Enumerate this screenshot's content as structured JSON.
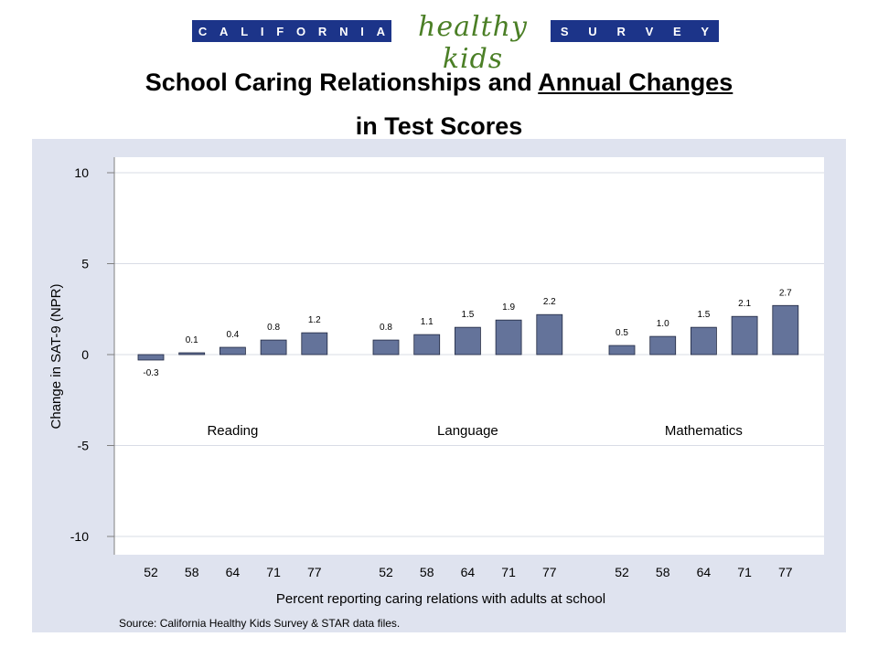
{
  "logo": {
    "left_letters": [
      "C",
      "A",
      "L",
      "I",
      "F",
      "O",
      "R",
      "N",
      "I",
      "A"
    ],
    "script_text": "healthy kids",
    "right_letters": [
      "S",
      "U",
      "R",
      "V",
      "E",
      "Y"
    ],
    "band_color": "#1c3489",
    "script_color": "#4b7f26"
  },
  "title": {
    "part1": "School Caring Relationships and ",
    "part2_underlined": "Annual Changes",
    "line2": "in Test Scores"
  },
  "chart_data": {
    "type": "bar",
    "ylabel": "Change in SAT-9 (NPR)",
    "xlabel": "Percent reporting caring relations with adults at school",
    "ylim": [
      -10,
      10
    ],
    "yticks": [
      10,
      5,
      0,
      -5,
      -10
    ],
    "grid": true,
    "bar_color": "#64739a",
    "groups": [
      {
        "name": "Reading",
        "categories": [
          "52",
          "58",
          "64",
          "71",
          "77"
        ],
        "values": [
          -0.3,
          0.1,
          0.4,
          0.8,
          1.2
        ],
        "labels": [
          "-0.3",
          "0.1",
          "0.4",
          "0.8",
          "1.2"
        ]
      },
      {
        "name": "Language",
        "categories": [
          "52",
          "58",
          "64",
          "71",
          "77"
        ],
        "values": [
          0.8,
          1.1,
          1.5,
          1.9,
          2.2
        ],
        "labels": [
          "0.8",
          "1.1",
          "1.5",
          "1.9",
          "2.2"
        ]
      },
      {
        "name": "Mathematics",
        "categories": [
          "52",
          "58",
          "64",
          "71",
          "77"
        ],
        "values": [
          0.5,
          1.0,
          1.5,
          2.1,
          2.7
        ],
        "labels": [
          "0.5",
          "1.0",
          "1.5",
          "2.1",
          "2.7"
        ]
      }
    ],
    "source": "Source:  California Healthy Kids Survey & STAR data files."
  }
}
